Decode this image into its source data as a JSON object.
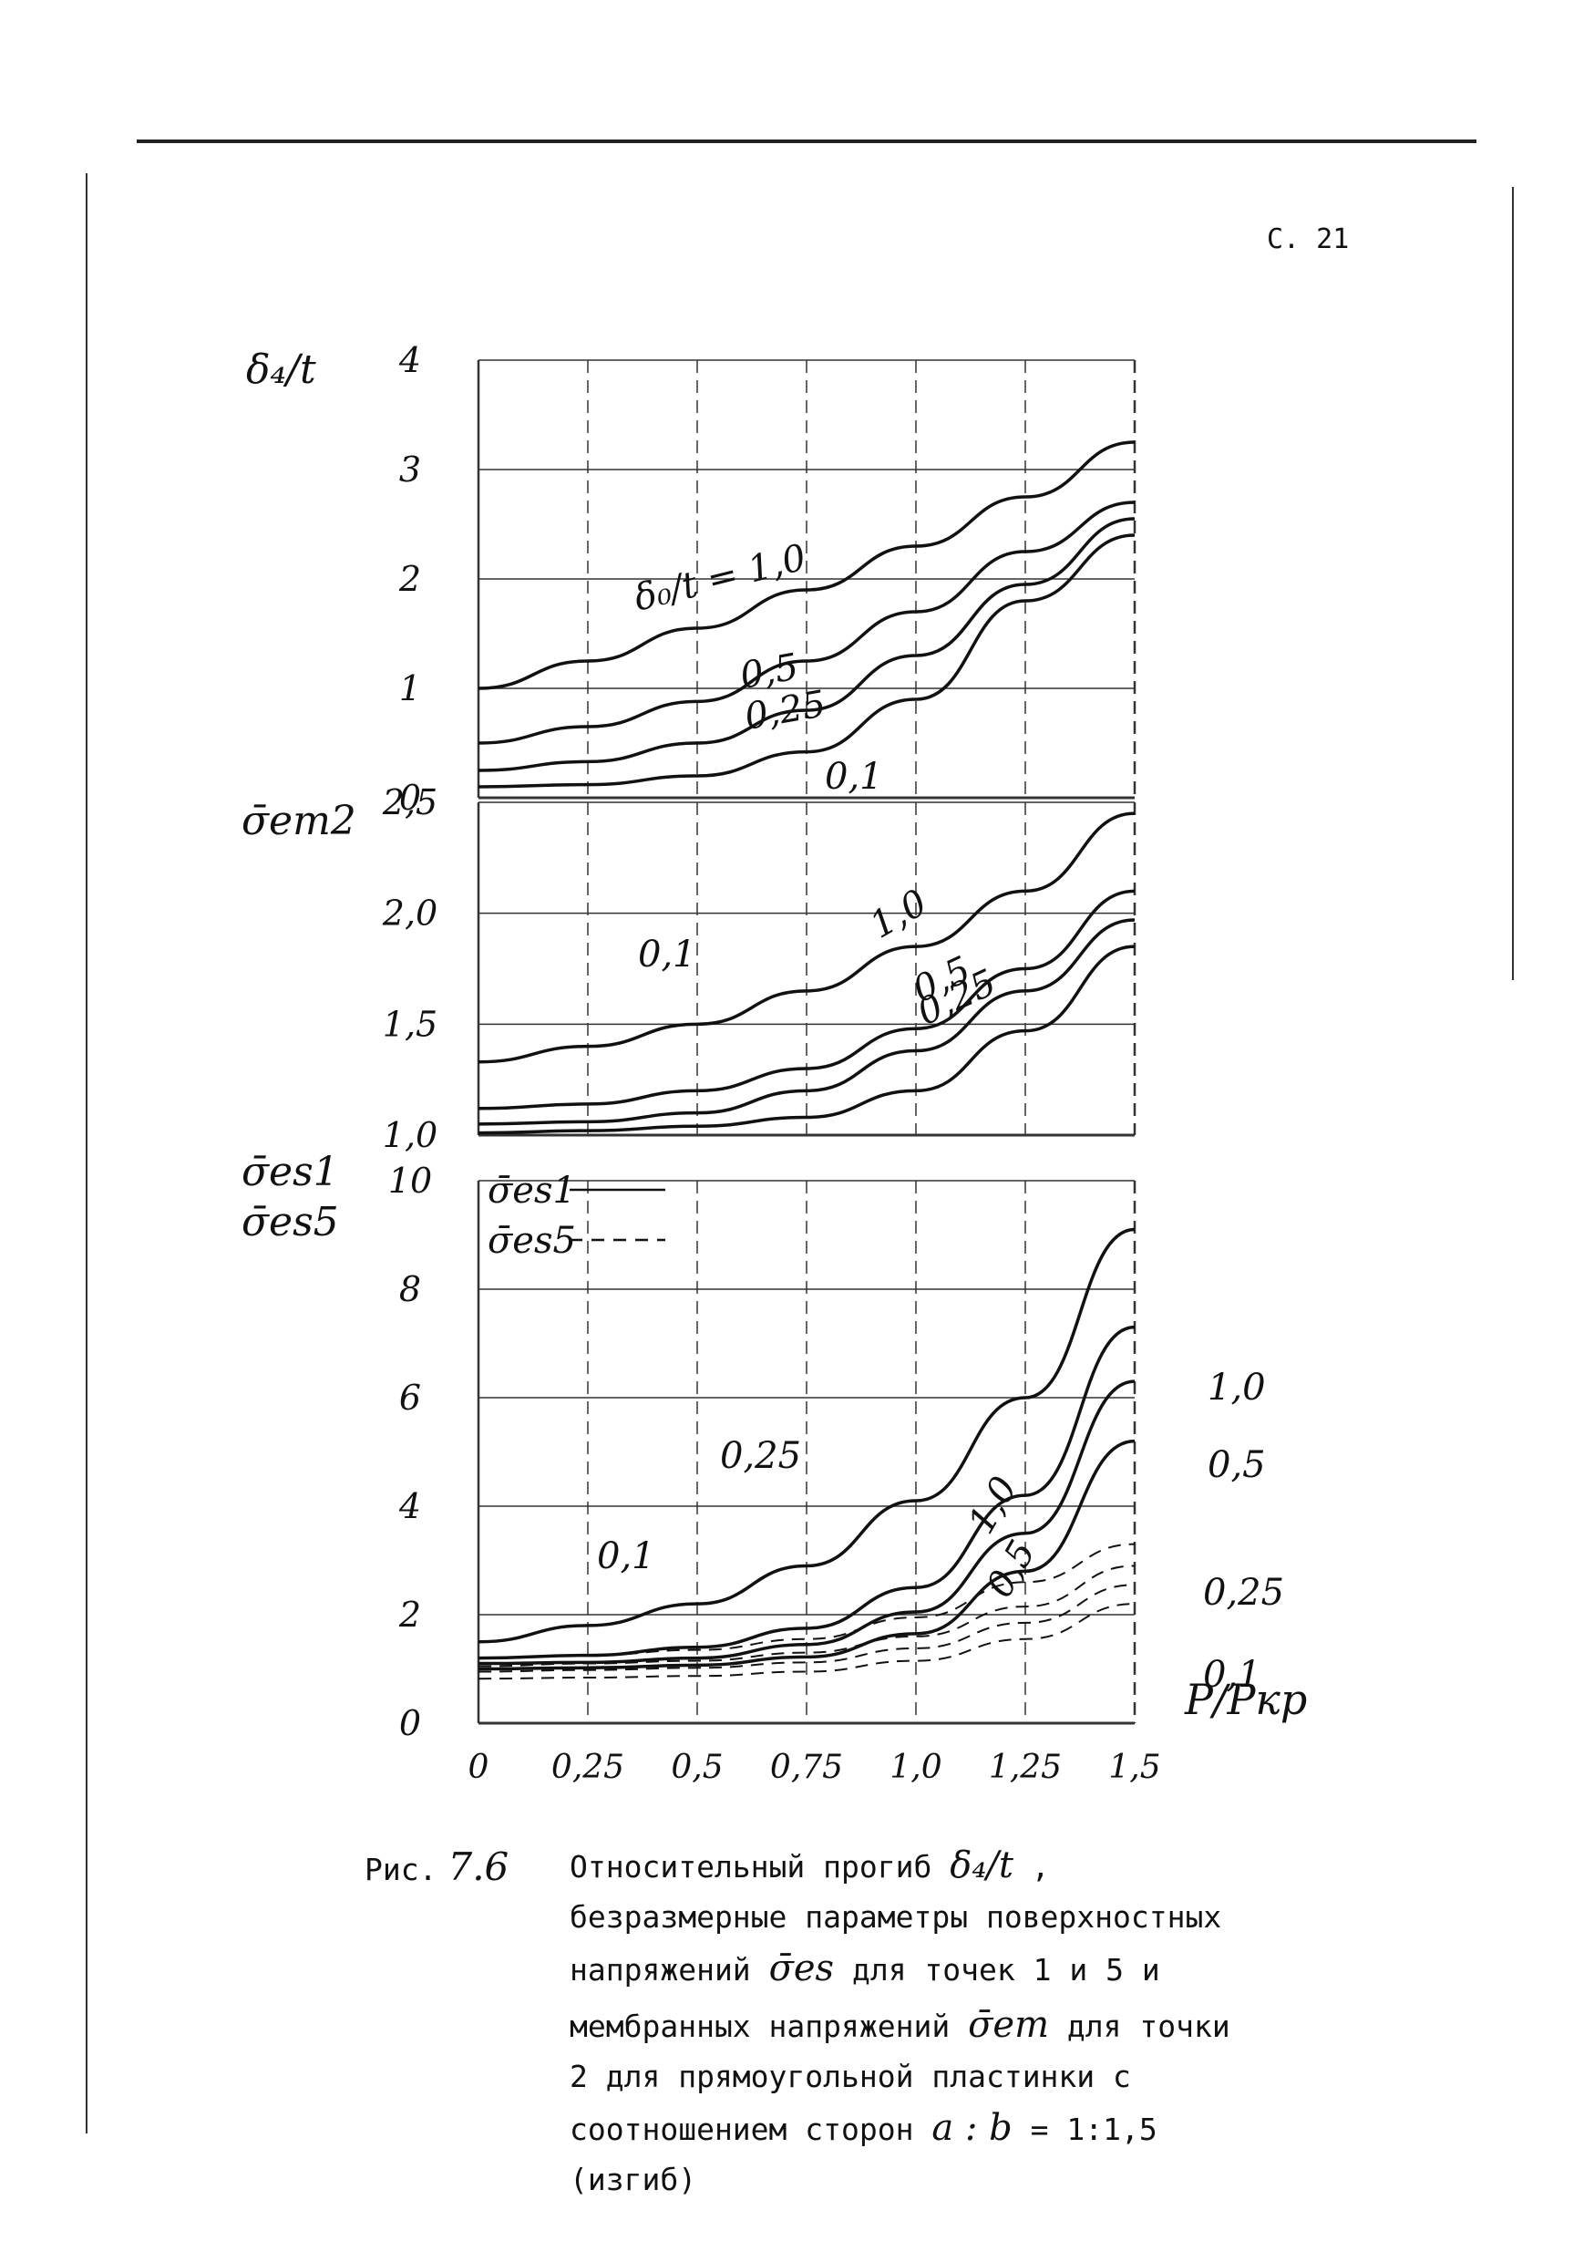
{
  "page_number": "С. 21",
  "caption": {
    "label": "Рис.",
    "number": "7.6",
    "text_1": "Относительный прогиб",
    "sym_deflection": "δ₄/t",
    "text_2": ", безразмерные параметры поверхностных напряжений",
    "sym_es": "σ̄es",
    "text_3": "для точек 1 и 5 и мембранных напряжений",
    "sym_em": "σ̄em",
    "text_4": "для точки 2 для прямоугольной пластинки с соотношением сторон",
    "sym_ratio": "a : b",
    "text_5": "= 1:1,5 (изгиб)"
  },
  "chart_data": [
    {
      "type": "line",
      "ylabel": "δ₄/t",
      "ylim": [
        0,
        4
      ],
      "yticks": [
        "0",
        "1",
        "2",
        "3",
        "4"
      ],
      "xlim": [
        0,
        1.5
      ],
      "grid": true,
      "series": [
        {
          "name": "δ₀/t = 1,0",
          "style": "solid",
          "x": [
            0,
            0.25,
            0.5,
            0.75,
            1.0,
            1.25,
            1.5
          ],
          "y": [
            1.0,
            1.25,
            1.55,
            1.9,
            2.3,
            2.75,
            3.25
          ]
        },
        {
          "name": "0,5",
          "style": "solid",
          "x": [
            0,
            0.25,
            0.5,
            0.75,
            1.0,
            1.25,
            1.5
          ],
          "y": [
            0.5,
            0.65,
            0.88,
            1.25,
            1.7,
            2.25,
            2.7
          ]
        },
        {
          "name": "0,25",
          "style": "solid",
          "x": [
            0,
            0.25,
            0.5,
            0.75,
            1.0,
            1.25,
            1.5
          ],
          "y": [
            0.25,
            0.33,
            0.5,
            0.8,
            1.3,
            1.95,
            2.55
          ]
        },
        {
          "name": "0,1",
          "style": "solid",
          "x": [
            0,
            0.25,
            0.5,
            0.75,
            1.0,
            1.25,
            1.5
          ],
          "y": [
            0.1,
            0.12,
            0.2,
            0.42,
            0.9,
            1.8,
            2.4
          ]
        }
      ]
    },
    {
      "type": "line",
      "ylabel": "σ̄em2",
      "ylim": [
        1.0,
        2.5
      ],
      "yticks": [
        "1,0",
        "1,5",
        "2,0",
        "2,5"
      ],
      "xlim": [
        0,
        1.5
      ],
      "grid": true,
      "series": [
        {
          "name": "1,0",
          "style": "solid",
          "x": [
            0,
            0.25,
            0.5,
            0.75,
            1.0,
            1.25,
            1.5
          ],
          "y": [
            1.33,
            1.4,
            1.5,
            1.65,
            1.85,
            2.1,
            2.45
          ]
        },
        {
          "name": "0,5",
          "style": "solid",
          "x": [
            0,
            0.25,
            0.5,
            0.75,
            1.0,
            1.25,
            1.5
          ],
          "y": [
            1.12,
            1.14,
            1.2,
            1.3,
            1.48,
            1.75,
            2.1
          ]
        },
        {
          "name": "0,25",
          "style": "solid",
          "x": [
            0,
            0.25,
            0.5,
            0.75,
            1.0,
            1.25,
            1.5
          ],
          "y": [
            1.05,
            1.06,
            1.1,
            1.2,
            1.38,
            1.65,
            1.97
          ]
        },
        {
          "name": "0,1",
          "style": "solid",
          "x": [
            0,
            0.25,
            0.5,
            0.75,
            1.0,
            1.25,
            1.5
          ],
          "y": [
            1.01,
            1.02,
            1.04,
            1.08,
            1.2,
            1.47,
            1.85
          ]
        }
      ]
    },
    {
      "type": "line",
      "ylabel": "σ̄es1",
      "ylabel2": "σ̄es5",
      "ylim": [
        0,
        10
      ],
      "yticks": [
        "0",
        "2",
        "4",
        "6",
        "8",
        "10"
      ],
      "xlabel": "P/Pкр",
      "xlim": [
        0,
        1.5
      ],
      "xticks": [
        "0",
        "0,25",
        "0,5",
        "0,75",
        "1,0",
        "1,25",
        "1,5"
      ],
      "grid": true,
      "legend": [
        {
          "label": "σ̄es1",
          "style": "solid"
        },
        {
          "label": "σ̄es5",
          "style": "dashed"
        }
      ],
      "series": [
        {
          "name": "1,0",
          "style": "solid",
          "x": [
            0,
            0.25,
            0.5,
            0.75,
            1.0,
            1.25,
            1.5
          ],
          "y": [
            1.5,
            1.8,
            2.2,
            2.9,
            4.1,
            6.0,
            9.1
          ]
        },
        {
          "name": "0,5",
          "style": "solid",
          "x": [
            0,
            0.25,
            0.5,
            0.75,
            1.0,
            1.25,
            1.5
          ],
          "y": [
            1.2,
            1.25,
            1.4,
            1.75,
            2.5,
            4.2,
            7.3
          ]
        },
        {
          "name": "0,25",
          "style": "solid",
          "x": [
            0,
            0.25,
            0.5,
            0.75,
            1.0,
            1.25,
            1.5
          ],
          "y": [
            1.1,
            1.12,
            1.2,
            1.45,
            2.05,
            3.5,
            6.3
          ]
        },
        {
          "name": "0,1",
          "style": "solid",
          "x": [
            0,
            0.25,
            0.5,
            0.75,
            1.0,
            1.25,
            1.5
          ],
          "y": [
            1.0,
            1.02,
            1.07,
            1.22,
            1.65,
            2.8,
            5.2
          ]
        },
        {
          "name": "1,0",
          "style": "dashed",
          "x": [
            0,
            0.25,
            0.5,
            0.75,
            1.0,
            1.25,
            1.5
          ],
          "y": [
            1.2,
            1.25,
            1.35,
            1.55,
            1.95,
            2.6,
            3.3
          ]
        },
        {
          "name": "0,5",
          "style": "dashed",
          "x": [
            0,
            0.25,
            0.5,
            0.75,
            1.0,
            1.25,
            1.5
          ],
          "y": [
            1.05,
            1.1,
            1.15,
            1.3,
            1.6,
            2.15,
            2.9
          ]
        },
        {
          "name": "0,25",
          "style": "dashed",
          "x": [
            0,
            0.25,
            0.5,
            0.75,
            1.0,
            1.25,
            1.5
          ],
          "y": [
            0.95,
            0.98,
            1.02,
            1.12,
            1.38,
            1.85,
            2.55
          ]
        },
        {
          "name": "0,1",
          "style": "dashed",
          "x": [
            0,
            0.25,
            0.5,
            0.75,
            1.0,
            1.25,
            1.5
          ],
          "y": [
            0.82,
            0.84,
            0.87,
            0.95,
            1.15,
            1.55,
            2.2
          ]
        }
      ]
    }
  ]
}
